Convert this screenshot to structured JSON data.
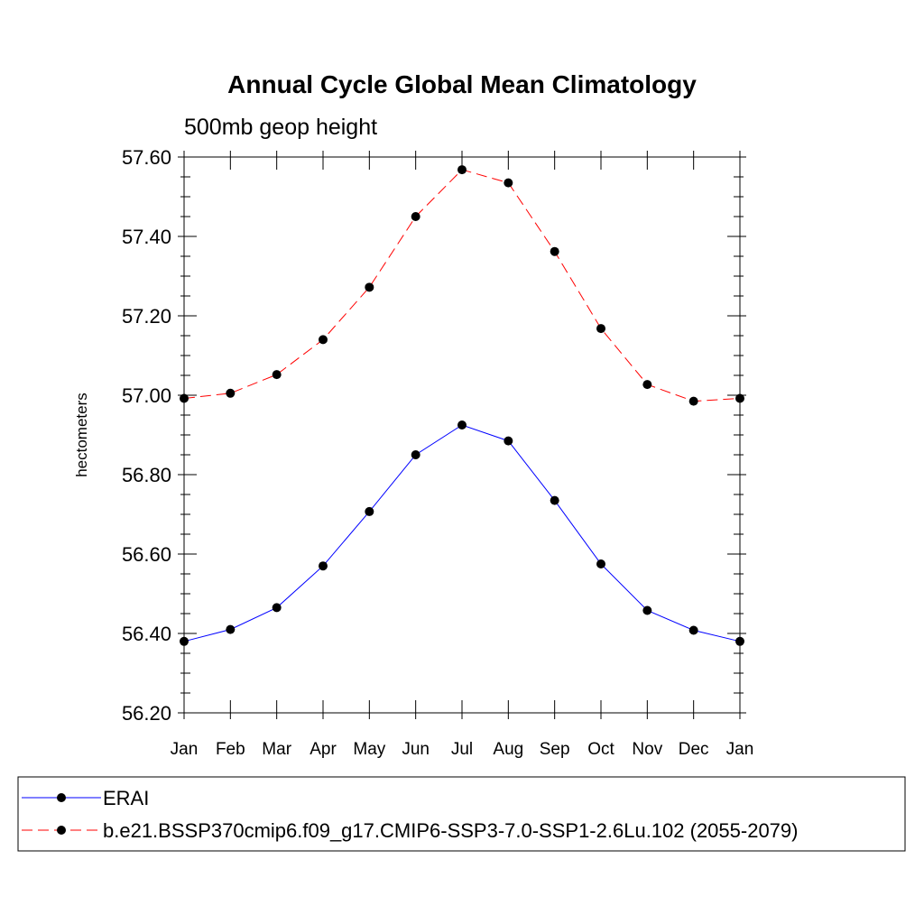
{
  "chart_data": {
    "type": "line",
    "title": "Annual Cycle Global Mean Climatology",
    "subtitle": "500mb geop height",
    "xlabel": "",
    "ylabel": "hectometers",
    "categories": [
      "Jan",
      "Feb",
      "Mar",
      "Apr",
      "May",
      "Jun",
      "Jul",
      "Aug",
      "Sep",
      "Oct",
      "Nov",
      "Dec",
      "Jan"
    ],
    "ylim": [
      56.2,
      57.6
    ],
    "yticks": [
      56.2,
      56.4,
      56.6,
      56.8,
      57.0,
      57.2,
      57.4,
      57.6
    ],
    "ytick_labels": [
      "56.20",
      "56.40",
      "56.60",
      "56.80",
      "57.00",
      "57.20",
      "57.40",
      "57.60"
    ],
    "grid": false,
    "legend_position": "bottom",
    "series": [
      {
        "name": "ERAI",
        "color": "#0000ff",
        "dash": "solid",
        "values": [
          56.38,
          56.41,
          56.465,
          56.57,
          56.707,
          56.85,
          56.925,
          56.885,
          56.735,
          56.575,
          56.458,
          56.408,
          56.38
        ]
      },
      {
        "name": "b.e21.BSSP370cmip6.f09_g17.CMIP6-SSP3-7.0-SSP1-2.6Lu.102 (2055-2079)",
        "color": "#ff0000",
        "dash": "dashed",
        "values": [
          56.992,
          57.005,
          57.052,
          57.14,
          57.272,
          57.45,
          57.568,
          57.535,
          57.362,
          57.168,
          57.027,
          56.985,
          56.992
        ]
      }
    ]
  }
}
